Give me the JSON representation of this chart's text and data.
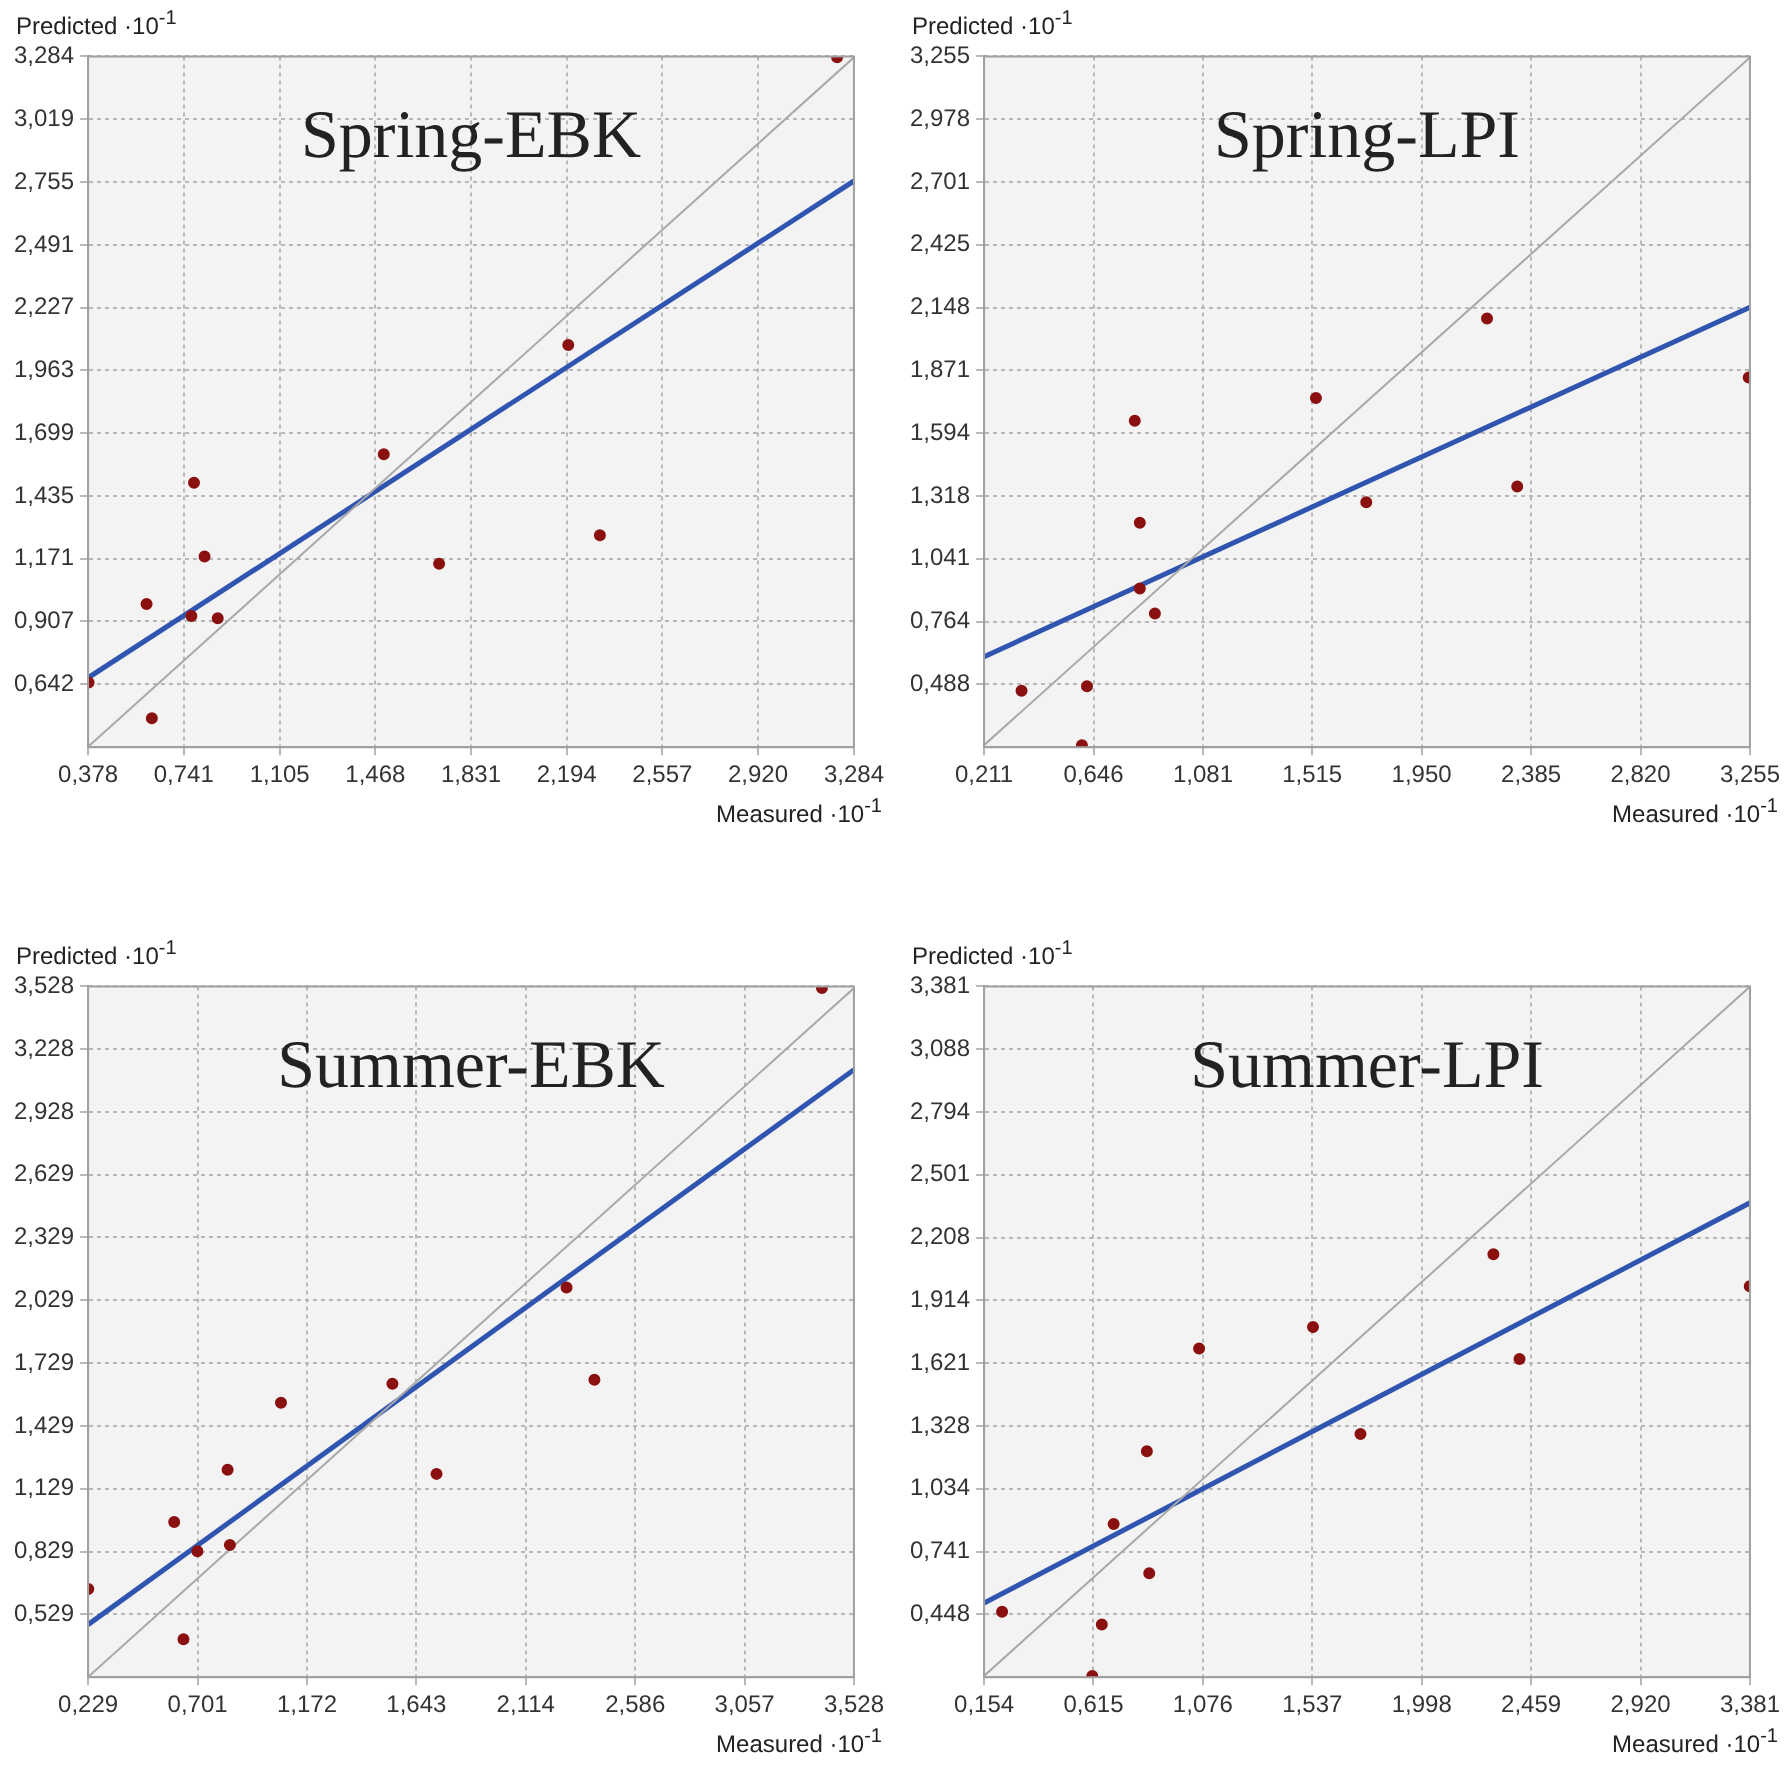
{
  "chart_data": [
    {
      "type": "scatter",
      "title": "Spring-EBK",
      "xlabel": "Measured ·10$^{-1}$",
      "ylabel": "Predicted ·10$^{-1}$",
      "grid": true,
      "marker": "circle",
      "legend": false,
      "xlim": [
        0.378,
        3.284
      ],
      "ylim": [
        0.378,
        3.284
      ],
      "xticks": [
        {
          "value": 0.378,
          "label": "0,378"
        },
        {
          "value": 0.741,
          "label": "0,741"
        },
        {
          "value": 1.105,
          "label": "1,105"
        },
        {
          "value": 1.468,
          "label": "1,468"
        },
        {
          "value": 1.831,
          "label": "1,831"
        },
        {
          "value": 2.194,
          "label": "2,194"
        },
        {
          "value": 2.557,
          "label": "2,557"
        },
        {
          "value": 2.92,
          "label": "2,920"
        },
        {
          "value": 3.284,
          "label": "3,284"
        }
      ],
      "yticks": [
        {
          "value": 0.642,
          "label": "0,642"
        },
        {
          "value": 0.907,
          "label": "0,907"
        },
        {
          "value": 1.171,
          "label": "1,171"
        },
        {
          "value": 1.435,
          "label": "1,435"
        },
        {
          "value": 1.699,
          "label": "1,699"
        },
        {
          "value": 1.963,
          "label": "1,963"
        },
        {
          "value": 2.227,
          "label": "2,227"
        },
        {
          "value": 2.491,
          "label": "2,491"
        },
        {
          "value": 2.755,
          "label": "2,755"
        },
        {
          "value": 3.019,
          "label": "3,019"
        },
        {
          "value": 3.284,
          "label": "3,284"
        }
      ],
      "series": [
        {
          "type": "scatter",
          "color": "#8b1010",
          "x": [
            3.22,
            2.2,
            1.5,
            0.78,
            0.82,
            1.71,
            2.32,
            0.6,
            0.77,
            0.87,
            0.38,
            0.62
          ],
          "values": [
            3.28,
            2.07,
            1.61,
            1.49,
            1.18,
            1.15,
            1.27,
            0.98,
            0.93,
            0.92,
            0.65,
            0.5
          ]
        },
        {
          "type": "line",
          "marker": "none",
          "color": "#a8a8a8",
          "x": [
            0.378,
            3.284
          ],
          "values": [
            0.38,
            3.28
          ]
        },
        {
          "type": "line",
          "marker": "none",
          "color": "#2f55b0",
          "x": [
            0.378,
            3.284
          ],
          "values": [
            0.67,
            2.76
          ]
        }
      ]
    },
    {
      "type": "scatter",
      "title": "Spring-LPI",
      "xlabel": "Measured ·10$^{-1}$",
      "ylabel": "Predicted ·10$^{-1}$",
      "grid": true,
      "marker": "circle",
      "legend": false,
      "xlim": [
        0.211,
        3.255
      ],
      "ylim": [
        0.211,
        3.255
      ],
      "xticks": [
        {
          "value": 0.211,
          "label": "0,211"
        },
        {
          "value": 0.646,
          "label": "0,646"
        },
        {
          "value": 1.081,
          "label": "1,081"
        },
        {
          "value": 1.515,
          "label": "1,515"
        },
        {
          "value": 1.95,
          "label": "1,950"
        },
        {
          "value": 2.385,
          "label": "2,385"
        },
        {
          "value": 2.82,
          "label": "2,820"
        },
        {
          "value": 3.255,
          "label": "3,255"
        }
      ],
      "yticks": [
        {
          "value": 0.488,
          "label": "0,488"
        },
        {
          "value": 0.764,
          "label": "0,764"
        },
        {
          "value": 1.041,
          "label": "1,041"
        },
        {
          "value": 1.318,
          "label": "1,318"
        },
        {
          "value": 1.594,
          "label": "1,594"
        },
        {
          "value": 1.871,
          "label": "1,871"
        },
        {
          "value": 2.148,
          "label": "2,148"
        },
        {
          "value": 2.425,
          "label": "2,425"
        },
        {
          "value": 2.701,
          "label": "2,701"
        },
        {
          "value": 2.978,
          "label": "2,978"
        },
        {
          "value": 3.255,
          "label": "3,255"
        }
      ],
      "series": [
        {
          "type": "scatter",
          "color": "#8b1010",
          "x": [
            0.36,
            0.62,
            0.6,
            0.81,
            0.83,
            0.83,
            0.89,
            1.53,
            1.73,
            2.21,
            2.33,
            3.25
          ],
          "values": [
            0.46,
            0.48,
            0.22,
            1.65,
            1.2,
            0.91,
            0.8,
            1.75,
            1.29,
            2.1,
            1.36,
            1.84
          ]
        },
        {
          "type": "line",
          "marker": "none",
          "color": "#a8a8a8",
          "x": [
            0.211,
            3.255
          ],
          "values": [
            0.22,
            3.25
          ]
        },
        {
          "type": "line",
          "marker": "none",
          "color": "#2f55b0",
          "x": [
            0.211,
            3.255
          ],
          "values": [
            0.61,
            2.15
          ]
        }
      ]
    },
    {
      "type": "scatter",
      "title": "Summer-EBK",
      "xlabel": "Measured ·10$^{-1}$",
      "ylabel": "Predicted ·10$^{-1}$",
      "grid": true,
      "marker": "circle",
      "legend": false,
      "xlim": [
        0.229,
        3.528
      ],
      "ylim": [
        0.229,
        3.528
      ],
      "xticks": [
        {
          "value": 0.229,
          "label": "0,229"
        },
        {
          "value": 0.701,
          "label": "0,701"
        },
        {
          "value": 1.172,
          "label": "1,172"
        },
        {
          "value": 1.643,
          "label": "1,643"
        },
        {
          "value": 2.114,
          "label": "2,114"
        },
        {
          "value": 2.586,
          "label": "2,586"
        },
        {
          "value": 3.057,
          "label": "3,057"
        },
        {
          "value": 3.528,
          "label": "3,528"
        }
      ],
      "yticks": [
        {
          "value": 0.529,
          "label": "0,529"
        },
        {
          "value": 0.829,
          "label": "0,829"
        },
        {
          "value": 1.129,
          "label": "1,129"
        },
        {
          "value": 1.429,
          "label": "1,429"
        },
        {
          "value": 1.729,
          "label": "1,729"
        },
        {
          "value": 2.029,
          "label": "2,029"
        },
        {
          "value": 2.329,
          "label": "2,329"
        },
        {
          "value": 2.629,
          "label": "2,629"
        },
        {
          "value": 2.928,
          "label": "2,928"
        },
        {
          "value": 3.228,
          "label": "3,228"
        },
        {
          "value": 3.528,
          "label": "3,528"
        }
      ],
      "series": [
        {
          "type": "scatter",
          "color": "#8b1010",
          "x": [
            3.39,
            2.29,
            2.41,
            1.54,
            1.06,
            1.73,
            0.83,
            0.6,
            0.7,
            0.84,
            0.23,
            0.64
          ],
          "values": [
            3.52,
            2.09,
            1.65,
            1.63,
            1.54,
            1.2,
            1.22,
            0.97,
            0.83,
            0.86,
            0.65,
            0.41
          ]
        },
        {
          "type": "line",
          "marker": "none",
          "color": "#a8a8a8",
          "x": [
            0.229,
            3.528
          ],
          "values": [
            0.23,
            3.52
          ]
        },
        {
          "type": "line",
          "marker": "none",
          "color": "#2f55b0",
          "x": [
            0.229,
            3.528
          ],
          "values": [
            0.48,
            3.13
          ]
        }
      ]
    },
    {
      "type": "scatter",
      "title": "Summer-LPI",
      "xlabel": "Measured ·10$^{-1}$",
      "ylabel": "Predicted ·10$^{-1}$",
      "grid": true,
      "marker": "circle",
      "legend": false,
      "xlim": [
        0.154,
        3.381
      ],
      "ylim": [
        0.154,
        3.381
      ],
      "xticks": [
        {
          "value": 0.154,
          "label": "0,154"
        },
        {
          "value": 0.615,
          "label": "0,615"
        },
        {
          "value": 1.076,
          "label": "1,076"
        },
        {
          "value": 1.537,
          "label": "1,537"
        },
        {
          "value": 1.998,
          "label": "1,998"
        },
        {
          "value": 2.459,
          "label": "2,459"
        },
        {
          "value": 2.92,
          "label": "2,920"
        },
        {
          "value": 3.381,
          "label": "3,381"
        }
      ],
      "yticks": [
        {
          "value": 0.448,
          "label": "0,448"
        },
        {
          "value": 0.741,
          "label": "0,741"
        },
        {
          "value": 1.034,
          "label": "1,034"
        },
        {
          "value": 1.328,
          "label": "1,328"
        },
        {
          "value": 1.621,
          "label": "1,621"
        },
        {
          "value": 1.914,
          "label": "1,914"
        },
        {
          "value": 2.208,
          "label": "2,208"
        },
        {
          "value": 2.501,
          "label": "2,501"
        },
        {
          "value": 2.794,
          "label": "2,794"
        },
        {
          "value": 3.088,
          "label": "3,088"
        },
        {
          "value": 3.381,
          "label": "3,381"
        }
      ],
      "series": [
        {
          "type": "scatter",
          "color": "#8b1010",
          "x": [
            0.23,
            0.61,
            0.65,
            0.7,
            0.84,
            0.85,
            1.06,
            1.54,
            1.74,
            2.3,
            2.41,
            3.38
          ],
          "values": [
            0.46,
            0.16,
            0.4,
            0.87,
            1.21,
            0.64,
            1.69,
            1.79,
            1.29,
            2.13,
            1.64,
            1.98
          ]
        },
        {
          "type": "line",
          "marker": "none",
          "color": "#a8a8a8",
          "x": [
            0.154,
            3.381
          ],
          "values": [
            0.16,
            3.38
          ]
        },
        {
          "type": "line",
          "marker": "none",
          "color": "#2f55b0",
          "x": [
            0.154,
            3.381
          ],
          "values": [
            0.5,
            2.37
          ]
        }
      ]
    }
  ]
}
